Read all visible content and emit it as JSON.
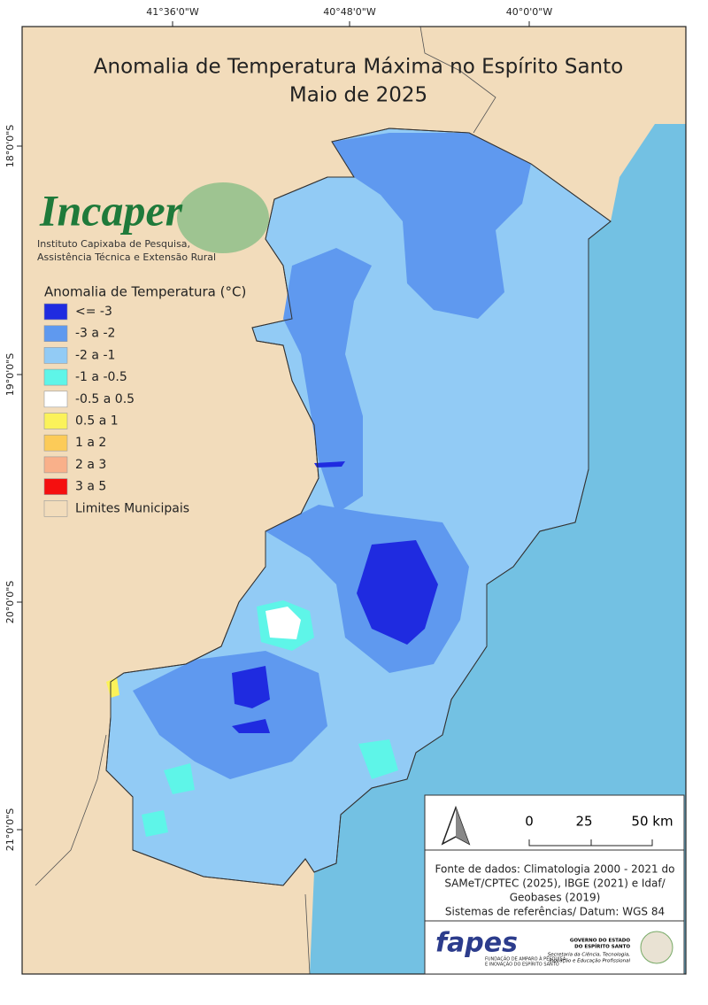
{
  "map": {
    "title": [
      "Anomalia de Temperatura Máxima no Espírito Santo",
      "Maio de 2025"
    ],
    "lon_labels": [
      "41°36'0\"W",
      "40°48'0\"W",
      "40°0'0\"W"
    ],
    "lat_labels": [
      "18°0'0\"S",
      "19°0'0\"S",
      "20°0'0\"S",
      "21°0'0\"S"
    ]
  },
  "logo": {
    "name": "Incaper",
    "lines": [
      "Instituto Capixaba de Pesquisa,",
      "Assistência Técnica e Extensão Rural"
    ]
  },
  "legend": {
    "title": "Anomalia de Temperatura (°C)",
    "items": [
      {
        "label": "<= -3",
        "color": "#1f2be0"
      },
      {
        "label": "-3 a -2",
        "color": "#5f99ef"
      },
      {
        "label": "-2 a -1",
        "color": "#92cbf5"
      },
      {
        "label": "-1 a -0.5",
        "color": "#5ef5e8"
      },
      {
        "label": "-0.5 a 0.5",
        "color": "#ffffff"
      },
      {
        "label": "0.5 a 1",
        "color": "#fbf25a"
      },
      {
        "label": "1 a 2",
        "color": "#fccb58"
      },
      {
        "label": "2 a 3",
        "color": "#f9b08a"
      },
      {
        "label": "3 a 5",
        "color": "#f50f0f"
      },
      {
        "label": "Limites Municipais",
        "color": "#f2dcbb"
      }
    ]
  },
  "scale": {
    "labels": [
      "0",
      "25",
      "50 km"
    ]
  },
  "source": {
    "lines": [
      "Fonte de dados: Climatologia 2000 - 2021 do",
      "SAMeT/CPTEC (2025), IBGE (2021) e Idaf/",
      "Geobases (2019)",
      "Sistemas de referências/ Datum: WGS 84"
    ]
  },
  "footer": {
    "fapes": "fapes",
    "fapes_sub": [
      "FUNDAÇÃO DE AMPARO À PESQUISA",
      "E INOVAÇÃO DO ESPÍRITO SANTO"
    ],
    "gov": [
      "GOVERNO DO ESTADO",
      "DO ESPÍRITO SANTO"
    ],
    "secretaria": [
      "Secretaria da Ciência, Tecnologia,",
      "Inovação e Educação Profissional"
    ]
  }
}
